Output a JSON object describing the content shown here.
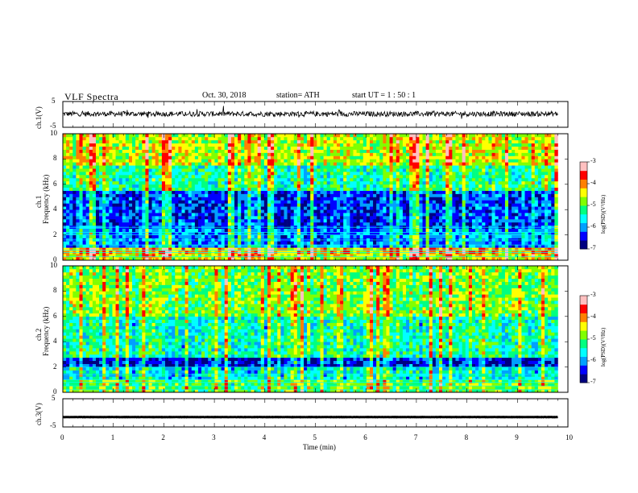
{
  "header": {
    "title": "VLF  Spectra",
    "date": "Oct. 30, 2018",
    "station": "station= ATH",
    "start": "start  UT  =    1  : 50 : 1"
  },
  "colors": {
    "waveform": "#000000",
    "axis": "#000000",
    "colormap": [
      "#000080",
      "#0000ff",
      "#00a0ff",
      "#00ffff",
      "#00ff80",
      "#80ff00",
      "#ffff00",
      "#ff8000",
      "#ff0000",
      "#ffc0c0",
      "#ffffff"
    ]
  },
  "chart_data": [
    {
      "type": "line",
      "panel": "ch1-waveform",
      "ylabel": "ch.1(V)",
      "xlim": [
        0,
        10
      ],
      "ylim": [
        -5,
        5
      ],
      "yticks": [
        "5",
        "-5"
      ],
      "series": [
        {
          "x_range_min": [
            0,
            9.8
          ],
          "mean_v": 0.2,
          "peak_to_peak_v": 2
        }
      ]
    },
    {
      "type": "heatmap",
      "panel": "ch1-spectrogram",
      "ylabel": "Frequency  (kHz)",
      "channel_label": "ch.1",
      "xlim": [
        0,
        10
      ],
      "ylim": [
        0,
        10
      ],
      "yticks": [
        "0",
        "2",
        "4",
        "6",
        "8",
        "10"
      ],
      "x_data_extent_min": [
        0,
        9.8
      ],
      "colorbar": {
        "label": "log(PSD)(V²/Hz)",
        "range": [
          -7,
          -3
        ],
        "ticks": [
          "-3",
          "-4",
          "-5",
          "-6",
          "-7"
        ]
      },
      "bands_khz_log_psd": [
        {
          "from": 0,
          "to": 0.5,
          "value": -4.5
        },
        {
          "from": 0.5,
          "to": 1.0,
          "value": -4.2
        },
        {
          "from": 1.0,
          "to": 2.5,
          "value": -6.0
        },
        {
          "from": 2.5,
          "to": 5.5,
          "value": -6.3
        },
        {
          "from": 5.5,
          "to": 7.5,
          "value": -5.3
        },
        {
          "from": 7.5,
          "to": 10,
          "value": -4.6
        }
      ],
      "tones_khz": [
        0.3,
        0.6,
        0.8,
        1.2,
        1.6,
        2.0,
        2.2,
        2.6
      ]
    },
    {
      "type": "heatmap",
      "panel": "ch2-spectrogram",
      "ylabel": "Frequency  (kHz)",
      "channel_label": "ch.2",
      "xlim": [
        0,
        10
      ],
      "ylim": [
        0,
        10
      ],
      "yticks": [
        "0",
        "2",
        "4",
        "6",
        "8",
        "10"
      ],
      "x_data_extent_min": [
        0,
        9.8
      ],
      "colorbar": {
        "label": "log(PSD)(V²/Hz)",
        "range": [
          -7,
          -3
        ],
        "ticks": [
          "-3",
          "-4",
          "-5",
          "-6",
          "-7"
        ]
      },
      "bands_khz_log_psd": [
        {
          "from": 0,
          "to": 1.0,
          "value": -5.0
        },
        {
          "from": 1.0,
          "to": 2.0,
          "value": -5.6
        },
        {
          "from": 2.0,
          "to": 2.8,
          "value": -6.5
        },
        {
          "from": 2.8,
          "to": 6.0,
          "value": -5.4
        },
        {
          "from": 6.0,
          "to": 10,
          "value": -4.9
        }
      ],
      "tones_khz": [
        0.2,
        0.5,
        0.8,
        1.0,
        1.4,
        2.0
      ]
    },
    {
      "type": "line",
      "panel": "ch3-waveform",
      "ylabel": "ch.3(V)",
      "xlim": [
        0,
        10
      ],
      "ylim": [
        -5,
        5
      ],
      "yticks": [
        "5",
        "-5"
      ],
      "series": [
        {
          "x_range_min": [
            0,
            9.8
          ],
          "mean_v": -1.5,
          "peak_to_peak_v": 0.4
        }
      ]
    }
  ],
  "xaxis": {
    "title": "Time  (min)",
    "ticks": [
      "0",
      "1",
      "2",
      "3",
      "4",
      "5",
      "6",
      "7",
      "8",
      "9",
      "10"
    ]
  }
}
